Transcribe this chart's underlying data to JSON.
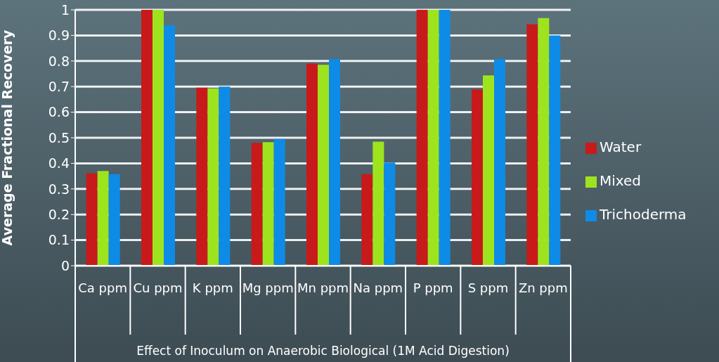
{
  "chart_data": {
    "type": "bar",
    "ylabel": "Average Fractional Recovery",
    "xlabel": "Effect of Inoculum on Anaerobic Biological (1M Acid Digestion)",
    "categories": [
      "Ca ppm",
      "Cu ppm",
      "K ppm",
      "Mg ppm",
      "Mn ppm",
      "Na ppm",
      "P ppm",
      "S ppm",
      "Zn ppm"
    ],
    "series": [
      {
        "name": "Water",
        "color": "#c81a1a",
        "values": [
          0.361,
          1.0,
          0.696,
          0.48,
          0.79,
          0.358,
          1.0,
          0.689,
          0.944
        ]
      },
      {
        "name": "Mixed",
        "color": "#9ee41e",
        "values": [
          0.37,
          1.0,
          0.693,
          0.483,
          0.785,
          0.485,
          1.0,
          0.744,
          0.968
        ]
      },
      {
        "name": "Trichoderma",
        "color": "#0e8be6",
        "values": [
          0.358,
          0.94,
          0.7,
          0.495,
          0.808,
          0.403,
          1.0,
          0.808,
          0.9
        ]
      }
    ],
    "ylim": [
      0,
      1
    ],
    "yticks": [
      0,
      0.1,
      0.2,
      0.3,
      0.4,
      0.5,
      0.6,
      0.7,
      0.8,
      0.9,
      1
    ],
    "grid": "y",
    "legend": "right"
  }
}
